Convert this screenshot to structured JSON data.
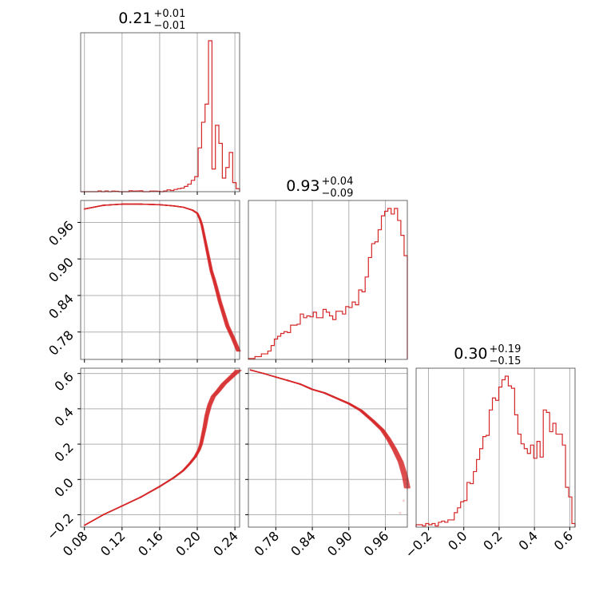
{
  "chart_data": {
    "type": "corner",
    "color": "#d62728",
    "grid": true,
    "parameters": [
      {
        "range": [
          0.076,
          0.245
        ],
        "ticks": [
          0.08,
          0.12,
          0.16,
          0.2,
          0.24
        ],
        "tick_labels": [
          "0.08",
          "0.12",
          "0.16",
          "0.20",
          "0.24"
        ]
      },
      {
        "range": [
          0.735,
          0.996
        ],
        "ticks": [
          0.78,
          0.84,
          0.9,
          0.96
        ],
        "tick_labels": [
          "0.78",
          "0.84",
          "0.90",
          "0.96"
        ]
      },
      {
        "range": [
          -0.27,
          0.63
        ],
        "ticks": [
          -0.2,
          0.0,
          0.2,
          0.4,
          0.6
        ],
        "tick_labels": [
          "−0.2",
          "0.0",
          "0.2",
          "0.4",
          "0.6"
        ]
      }
    ],
    "titles": [
      {
        "value": "0.21",
        "plus": "+0.01",
        "minus": "−0.01"
      },
      {
        "value": "0.93",
        "plus": "+0.04",
        "minus": "−0.09"
      },
      {
        "value": "0.30",
        "plus": "+0.19",
        "minus": "−0.15"
      }
    ],
    "hist_0": {
      "range": [
        0.076,
        0.245
      ],
      "ymax": 1.0,
      "counts": [
        0,
        0,
        0,
        0,
        0,
        0.005,
        0,
        0.005,
        0,
        0.004,
        0.003,
        0,
        0,
        0,
        0.006,
        0.004,
        0.005,
        0.006,
        0,
        0,
        0.004,
        0.004,
        0.003,
        0,
        0.005,
        0.012,
        0.008,
        0.015,
        0.02,
        0.024,
        0.035,
        0.05,
        0.075,
        0.1,
        0.29,
        0.46,
        0.58,
        1.0,
        0.15,
        0.44,
        0.32,
        0.09,
        0.16,
        0.26,
        0.06,
        0.02
      ]
    },
    "hist_1": {
      "range": [
        0.735,
        0.996
      ],
      "ymax": 1.0,
      "counts": [
        0.01,
        0.01,
        0.03,
        0.03,
        0.06,
        0.06,
        0.09,
        0.15,
        0.22,
        0.25,
        0.28,
        0.3,
        0.29,
        0.37,
        0.37,
        0.38,
        0.49,
        0.45,
        0.47,
        0.46,
        0.51,
        0.45,
        0.45,
        0.54,
        0.51,
        0.47,
        0.43,
        0.52,
        0.52,
        0.49,
        0.57,
        0.56,
        0.62,
        0.59,
        0.75,
        0.73,
        0.89,
        1.1,
        1.25,
        1.27,
        1.4,
        1.55,
        1.6,
        1.63,
        1.57,
        1.63,
        1.5,
        1.34,
        1.12
      ]
    },
    "hist_2": {
      "range": [
        -0.27,
        0.63
      ],
      "ymax": 1.0,
      "counts": [
        0.02,
        0.02,
        0.01,
        0.03,
        0.02,
        0.03,
        0.01,
        0.04,
        0.05,
        0.04,
        0.06,
        0.06,
        0.12,
        0.16,
        0.21,
        0.22,
        0.37,
        0.36,
        0.46,
        0.56,
        0.65,
        0.75,
        0.76,
        0.97,
        1.07,
        1.05,
        1.16,
        1.22,
        1.25,
        1.17,
        1.15,
        0.93,
        0.77,
        0.69,
        0.65,
        0.61,
        0.68,
        0.57,
        0.71,
        0.58,
        0.97,
        0.95,
        0.79,
        0.86,
        0.77,
        0.77,
        0.68,
        0.33,
        0.25,
        0.03
      ]
    },
    "curve_10": {
      "x": [
        0.08,
        0.1,
        0.12,
        0.14,
        0.16,
        0.175,
        0.185,
        0.195,
        0.2,
        0.203,
        0.205,
        0.207,
        0.209,
        0.211,
        0.213,
        0.215,
        0.218,
        0.221,
        0.224,
        0.228,
        0.232,
        0.238,
        0.244
      ],
      "y": [
        0.982,
        0.988,
        0.99,
        0.99,
        0.989,
        0.987,
        0.985,
        0.98,
        0.975,
        0.965,
        0.955,
        0.94,
        0.925,
        0.91,
        0.895,
        0.88,
        0.865,
        0.848,
        0.83,
        0.81,
        0.79,
        0.77,
        0.748
      ],
      "trace_spread": 0.004
    },
    "curve_20": {
      "x": [
        0.08,
        0.1,
        0.12,
        0.14,
        0.16,
        0.175,
        0.185,
        0.192,
        0.198,
        0.202,
        0.204,
        0.206,
        0.208,
        0.21,
        0.213,
        0.217,
        0.222,
        0.228,
        0.234,
        0.24,
        0.244
      ],
      "y": [
        -0.26,
        -0.2,
        -0.15,
        -0.1,
        -0.04,
        0.01,
        0.05,
        0.09,
        0.13,
        0.17,
        0.2,
        0.25,
        0.3,
        0.36,
        0.42,
        0.47,
        0.5,
        0.54,
        0.57,
        0.6,
        0.62
      ],
      "trace_spread": 0.006
    },
    "curve_21": {
      "x": [
        0.738,
        0.76,
        0.78,
        0.8,
        0.82,
        0.84,
        0.86,
        0.88,
        0.9,
        0.92,
        0.94,
        0.955,
        0.965,
        0.975,
        0.985,
        0.992,
        0.996
      ],
      "y": [
        0.62,
        0.6,
        0.58,
        0.56,
        0.54,
        0.51,
        0.49,
        0.46,
        0.43,
        0.39,
        0.33,
        0.28,
        0.23,
        0.17,
        0.1,
        0.02,
        -0.05
      ],
      "faint_tail_x": [
        0.996,
        0.99,
        0.984
      ],
      "faint_tail_y": [
        -0.05,
        -0.12,
        -0.19
      ],
      "trace_spread": 0.006
    }
  }
}
